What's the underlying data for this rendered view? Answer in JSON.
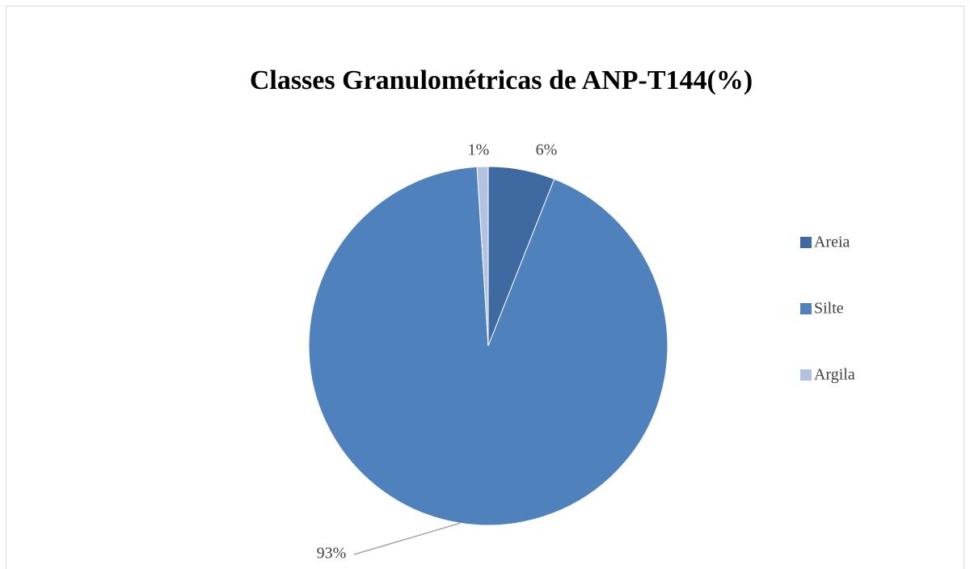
{
  "chart_data": {
    "type": "pie",
    "title": "Classes Granulométricas de ANP-T144(%)",
    "categories": [
      "Areia",
      "Silte",
      "Argila"
    ],
    "values": [
      6,
      93,
      1
    ],
    "value_labels": [
      "6%",
      "93%",
      "1%"
    ],
    "colors": [
      "#3e6aa1",
      "#4f81bd",
      "#b3c3df"
    ],
    "legend": "right"
  }
}
